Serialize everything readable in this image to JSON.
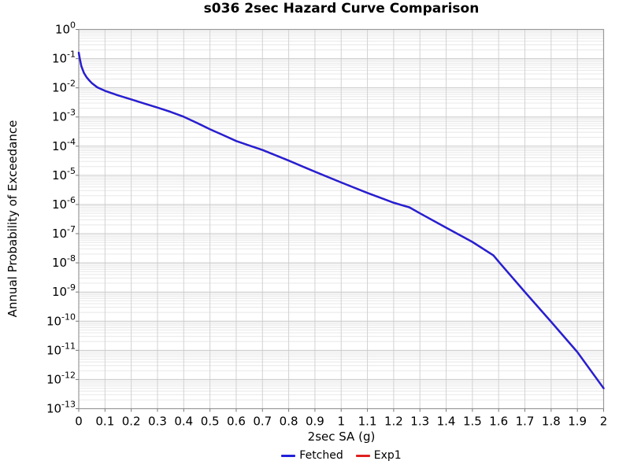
{
  "chart_data": {
    "type": "line",
    "title": "s036 2sec Hazard Curve Comparison",
    "xlabel": "2sec SA (g)",
    "ylabel": "Annual Probability of Exceedance",
    "x_scale": "linear",
    "y_scale": "log",
    "xlim": [
      0,
      2
    ],
    "ylim": [
      1e-13,
      1
    ],
    "x_ticks": [
      "0",
      "0.1",
      "0.2",
      "0.3",
      "0.4",
      "0.5",
      "0.6",
      "0.7",
      "0.8",
      "0.9",
      "1",
      "1.1",
      "1.2",
      "1.3",
      "1.4",
      "1.5",
      "1.6",
      "1.7",
      "1.8",
      "1.9",
      "2"
    ],
    "y_tick_exponents": [
      0,
      -1,
      -2,
      -3,
      -4,
      -5,
      -6,
      -7,
      -8,
      -9,
      -10,
      -11,
      -12,
      -13
    ],
    "grid": "major+minor",
    "legend_position": "bottom-center",
    "colors": {
      "major_grid": "#c9c9c9",
      "minor_grid": "#e8e8e8",
      "vertical_grid": "#d2d2d2",
      "frame": "#999999",
      "tick": "#777777"
    },
    "series": [
      {
        "name": "Fetched",
        "color": "#2121d8",
        "points": [
          [
            0,
            0.16
          ],
          [
            0.004,
            0.1
          ],
          [
            0.01,
            0.055
          ],
          [
            0.02,
            0.032
          ],
          [
            0.03,
            0.023
          ],
          [
            0.04,
            0.018
          ],
          [
            0.05,
            0.0145
          ],
          [
            0.07,
            0.0105
          ],
          [
            0.1,
            0.0079
          ],
          [
            0.15,
            0.0055
          ],
          [
            0.2,
            0.004
          ],
          [
            0.25,
            0.0029
          ],
          [
            0.3,
            0.0021
          ],
          [
            0.35,
            0.0015
          ],
          [
            0.4,
            0.00102
          ],
          [
            0.45,
            0.00063
          ],
          [
            0.5,
            0.00038
          ],
          [
            0.55,
            0.00024
          ],
          [
            0.6,
            0.00015
          ],
          [
            0.65,
            0.000105
          ],
          [
            0.7,
            7.4e-05
          ],
          [
            0.8,
            3.2e-05
          ],
          [
            0.9,
            1.33e-05
          ],
          [
            1.0,
            5.7e-06
          ],
          [
            1.1,
            2.5e-06
          ],
          [
            1.2,
            1.15e-06
          ],
          [
            1.26,
            8e-07
          ],
          [
            1.3,
            5e-07
          ],
          [
            1.4,
            1.6e-07
          ],
          [
            1.5,
            5.2e-08
          ],
          [
            1.58,
            1.8e-08
          ],
          [
            1.6,
            1.1e-08
          ],
          [
            1.7,
            1e-09
          ],
          [
            1.8,
            9.5e-11
          ],
          [
            1.9,
            8.7e-12
          ],
          [
            2.0,
            5e-13
          ]
        ]
      },
      {
        "name": "Exp1",
        "color": "#e02020",
        "points": [
          [
            0,
            0.16
          ],
          [
            0.004,
            0.1
          ],
          [
            0.01,
            0.055
          ],
          [
            0.02,
            0.032
          ],
          [
            0.03,
            0.023
          ],
          [
            0.04,
            0.018
          ],
          [
            0.05,
            0.0145
          ],
          [
            0.07,
            0.0105
          ],
          [
            0.1,
            0.0079
          ],
          [
            0.15,
            0.0055
          ],
          [
            0.2,
            0.004
          ],
          [
            0.25,
            0.0029
          ],
          [
            0.3,
            0.0021
          ],
          [
            0.35,
            0.0015
          ],
          [
            0.4,
            0.00102
          ],
          [
            0.45,
            0.00063
          ],
          [
            0.5,
            0.00038
          ],
          [
            0.55,
            0.00024
          ],
          [
            0.6,
            0.00015
          ],
          [
            0.65,
            0.000105
          ],
          [
            0.7,
            7.4e-05
          ],
          [
            0.8,
            3.2e-05
          ],
          [
            0.9,
            1.33e-05
          ],
          [
            1.0,
            5.7e-06
          ],
          [
            1.1,
            2.5e-06
          ],
          [
            1.2,
            1.15e-06
          ],
          [
            1.26,
            8e-07
          ],
          [
            1.3,
            5e-07
          ],
          [
            1.4,
            1.6e-07
          ],
          [
            1.5,
            5.2e-08
          ],
          [
            1.58,
            1.8e-08
          ],
          [
            1.6,
            1.1e-08
          ],
          [
            1.7,
            1e-09
          ],
          [
            1.8,
            9.5e-11
          ],
          [
            1.9,
            8.7e-12
          ],
          [
            2.0,
            5e-13
          ]
        ]
      }
    ]
  }
}
